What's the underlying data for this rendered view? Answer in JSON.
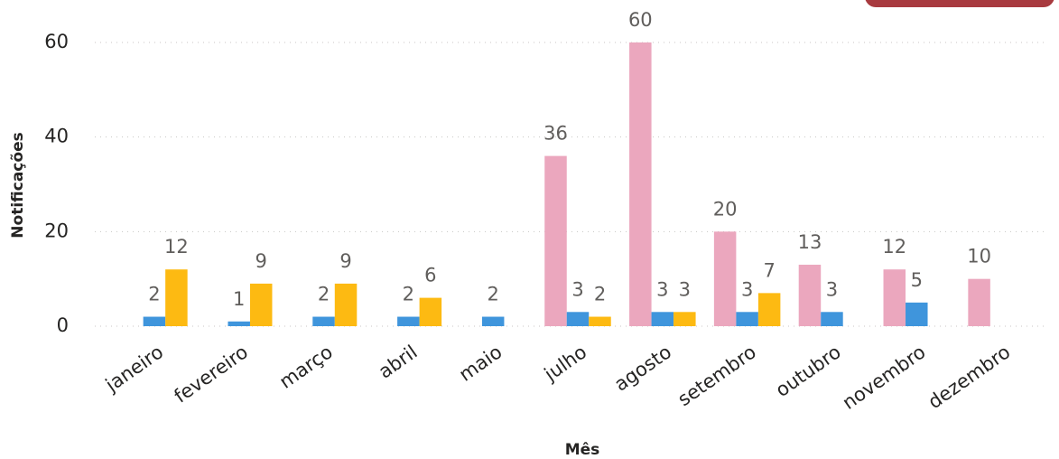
{
  "chart_data": {
    "type": "bar",
    "x_label": "Mês",
    "y_label": "Notificações",
    "categories": [
      "janeiro",
      "fevereiro",
      "março",
      "abril",
      "maio",
      "julho",
      "agosto",
      "setembro",
      "outubro",
      "novembro",
      "dezembro"
    ],
    "series": [
      {
        "color": "#eba7be",
        "values": [
          null,
          null,
          null,
          null,
          null,
          36,
          60,
          20,
          13,
          12,
          10
        ]
      },
      {
        "color": "#3f95dc",
        "values": [
          2,
          1,
          2,
          2,
          2,
          3,
          3,
          3,
          3,
          5,
          null
        ]
      },
      {
        "color": "#fdba12",
        "values": [
          12,
          9,
          9,
          6,
          null,
          2,
          3,
          7,
          null,
          null,
          null
        ]
      }
    ],
    "ylim": [
      0,
      60
    ],
    "yticks": [
      0,
      20,
      40,
      60
    ],
    "grid": true
  }
}
